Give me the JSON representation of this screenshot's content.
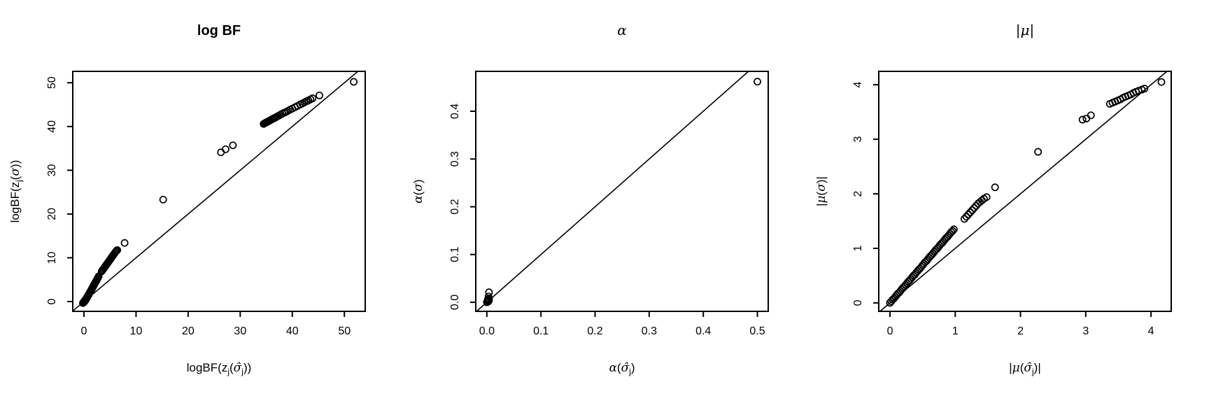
{
  "colors": {
    "foreground": "#000000",
    "background": "#ffffff"
  },
  "chart_data": [
    {
      "type": "scatter",
      "title": {
        "text": "log BF",
        "bold": true,
        "greek": false
      },
      "xlabel": {
        "parts": [
          {
            "t": "logBF(z"
          },
          {
            "t": "j",
            "sub": true
          },
          {
            "t": "("
          },
          {
            "t": "σ̂",
            "greek": true
          },
          {
            "t": "j",
            "sub": true
          },
          {
            "t": "))"
          }
        ]
      },
      "ylabel": {
        "parts": [
          {
            "t": "logBF(z"
          },
          {
            "t": "j",
            "sub": true
          },
          {
            "t": "("
          },
          {
            "t": "σ",
            "greek": true
          },
          {
            "t": "))"
          }
        ]
      },
      "xlim": [
        -2.15,
        54.0
      ],
      "ylim": [
        -2.24,
        52.6
      ],
      "xticks": [
        {
          "v": 0,
          "label": "0"
        },
        {
          "v": 10,
          "label": "10"
        },
        {
          "v": 20,
          "label": "20"
        },
        {
          "v": 30,
          "label": "30"
        },
        {
          "v": 40,
          "label": "40"
        },
        {
          "v": 50,
          "label": "50"
        }
      ],
      "yticks": [
        {
          "v": 0,
          "label": "0"
        },
        {
          "v": 10,
          "label": "10"
        },
        {
          "v": 20,
          "label": "20"
        },
        {
          "v": 30,
          "label": "30"
        },
        {
          "v": 40,
          "label": "40"
        },
        {
          "v": 50,
          "label": "50"
        }
      ],
      "reference_line": {
        "type": "identity",
        "intercept": 0,
        "slope": 1
      },
      "marker": "open-circle",
      "points": [
        [
          -0.2,
          -0.35
        ],
        [
          -0.1,
          -0.2
        ],
        [
          0,
          -0.1
        ],
        [
          0.08,
          -0.02
        ],
        [
          0.15,
          0.1
        ],
        [
          0.25,
          0.2
        ],
        [
          0,
          0
        ],
        [
          0.03,
          0.02
        ],
        [
          0.06,
          0.05
        ],
        [
          0.1,
          0.09
        ],
        [
          0.13,
          0.13
        ],
        [
          0.17,
          0.19
        ],
        [
          0.2,
          0.24
        ],
        [
          0.24,
          0.3
        ],
        [
          0.28,
          0.37
        ],
        [
          0.32,
          0.44
        ],
        [
          0.36,
          0.52
        ],
        [
          0.4,
          0.6
        ],
        [
          0.45,
          0.69
        ],
        [
          0.5,
          0.78
        ],
        [
          0.55,
          0.88
        ],
        [
          0.6,
          0.98
        ],
        [
          0.66,
          1.09
        ],
        [
          0.72,
          1.21
        ],
        [
          0.78,
          1.33
        ],
        [
          0.84,
          1.46
        ],
        [
          0.9,
          1.59
        ],
        [
          0.97,
          1.73
        ],
        [
          1.04,
          1.88
        ],
        [
          1.11,
          2.03
        ],
        [
          1.18,
          2.18
        ],
        [
          1.26,
          2.35
        ],
        [
          1.34,
          2.52
        ],
        [
          1.42,
          2.69
        ],
        [
          1.5,
          2.87
        ],
        [
          1.59,
          3.06
        ],
        [
          1.68,
          3.25
        ],
        [
          1.77,
          3.45
        ],
        [
          1.86,
          3.65
        ],
        [
          1.96,
          3.86
        ],
        [
          2.06,
          4.08
        ],
        [
          2.16,
          4.3
        ],
        [
          2.27,
          4.53
        ],
        [
          2.38,
          4.77
        ],
        [
          2.49,
          5.01
        ],
        [
          2.6,
          5.26
        ],
        [
          2.72,
          5.52
        ],
        [
          2.84,
          5.78
        ],
        [
          3.4,
          6.9
        ],
        [
          3.55,
          7.15
        ],
        [
          3.7,
          7.4
        ],
        [
          3.85,
          7.65
        ],
        [
          4.0,
          7.9
        ],
        [
          4.15,
          8.15
        ],
        [
          4.3,
          8.4
        ],
        [
          4.45,
          8.65
        ],
        [
          4.6,
          8.9
        ],
        [
          4.75,
          9.15
        ],
        [
          4.9,
          9.4
        ],
        [
          5.05,
          9.65
        ],
        [
          5.2,
          9.9
        ],
        [
          5.35,
          10.15
        ],
        [
          5.5,
          10.4
        ],
        [
          5.65,
          10.65
        ],
        [
          5.8,
          10.9
        ],
        [
          5.95,
          11.15
        ],
        [
          6.1,
          11.4
        ],
        [
          6.25,
          11.6
        ],
        [
          6.4,
          11.75
        ],
        [
          7.8,
          13.4
        ],
        [
          15.2,
          23.3
        ],
        [
          26.3,
          34.1
        ],
        [
          27.2,
          34.8
        ],
        [
          28.6,
          35.7
        ],
        [
          34.5,
          40.6
        ],
        [
          34.65,
          40.7
        ],
        [
          34.8,
          40.8
        ],
        [
          34.95,
          40.9
        ],
        [
          35.1,
          41.0
        ],
        [
          35.25,
          41.1
        ],
        [
          35.45,
          41.2
        ],
        [
          35.65,
          41.35
        ],
        [
          35.85,
          41.5
        ],
        [
          36.1,
          41.65
        ],
        [
          36.35,
          41.8
        ],
        [
          36.6,
          41.95
        ],
        [
          36.9,
          42.15
        ],
        [
          37.2,
          42.35
        ],
        [
          37.5,
          42.55
        ],
        [
          37.8,
          42.75
        ],
        [
          38.1,
          42.95
        ],
        [
          38.45,
          43.15
        ],
        [
          38.8,
          43.35
        ],
        [
          39.2,
          43.6
        ],
        [
          39.6,
          43.85
        ],
        [
          40.0,
          44.1
        ],
        [
          40.5,
          44.4
        ],
        [
          41.0,
          44.7
        ],
        [
          41.5,
          45.0
        ],
        [
          41.9,
          45.25
        ],
        [
          42.3,
          45.5
        ],
        [
          42.7,
          45.75
        ],
        [
          43.1,
          45.95
        ],
        [
          43.5,
          46.2
        ],
        [
          43.9,
          46.45
        ],
        [
          45.2,
          47.1
        ],
        [
          51.8,
          50.2
        ]
      ]
    },
    {
      "type": "scatter",
      "title": {
        "text": "α",
        "bold": false,
        "greek": true
      },
      "xlabel": {
        "parts": [
          {
            "t": "α",
            "greek": true
          },
          {
            "t": "("
          },
          {
            "t": "σ̂",
            "greek": true
          },
          {
            "t": "j",
            "sub": true
          },
          {
            "t": ")"
          }
        ]
      },
      "ylabel": {
        "parts": [
          {
            "t": "α",
            "greek": true
          },
          {
            "t": "("
          },
          {
            "t": "σ",
            "greek": true
          },
          {
            "t": ")"
          }
        ]
      },
      "xlim": [
        -0.0205,
        0.52
      ],
      "ylim": [
        -0.019,
        0.4835
      ],
      "xticks": [
        {
          "v": 0,
          "label": "0.0"
        },
        {
          "v": 0.1,
          "label": "0.1"
        },
        {
          "v": 0.2,
          "label": "0.2"
        },
        {
          "v": 0.3,
          "label": "0.3"
        },
        {
          "v": 0.4,
          "label": "0.4"
        },
        {
          "v": 0.5,
          "label": "0.5"
        }
      ],
      "yticks": [
        {
          "v": 0,
          "label": "0.0"
        },
        {
          "v": 0.1,
          "label": "0.1"
        },
        {
          "v": 0.2,
          "label": "0.2"
        },
        {
          "v": 0.3,
          "label": "0.3"
        },
        {
          "v": 0.4,
          "label": "0.4"
        }
      ],
      "reference_line": {
        "type": "identity",
        "intercept": 0,
        "slope": 1
      },
      "marker": "open-circle",
      "points": [
        [
          0,
          0
        ],
        [
          0.001,
          0.001
        ],
        [
          0.002,
          0.001
        ],
        [
          0.001,
          0.002
        ],
        [
          0.003,
          0.002
        ],
        [
          0.002,
          0.003
        ],
        [
          0.004,
          0.004
        ],
        [
          0.003,
          0.005
        ],
        [
          0.002,
          0.006
        ],
        [
          0.004,
          0.008
        ],
        [
          0.003,
          0.012
        ],
        [
          0.004,
          0.021
        ],
        [
          0.5,
          0.462
        ]
      ]
    },
    {
      "type": "scatter",
      "title": {
        "text": "|μ|",
        "bold": false,
        "greek": true
      },
      "xlabel": {
        "parts": [
          {
            "t": "|"
          },
          {
            "t": "μ",
            "greek": true
          },
          {
            "t": "("
          },
          {
            "t": "σ̂",
            "greek": true
          },
          {
            "t": "j",
            "sub": true
          },
          {
            "t": ")|"
          }
        ]
      },
      "ylabel": {
        "parts": [
          {
            "t": "|"
          },
          {
            "t": "μ",
            "greek": true
          },
          {
            "t": "("
          },
          {
            "t": "σ",
            "greek": true
          },
          {
            "t": ")|"
          }
        ]
      },
      "xlim": [
        -0.172,
        4.31
      ],
      "ylim": [
        -0.155,
        4.245
      ],
      "xticks": [
        {
          "v": 0,
          "label": "0"
        },
        {
          "v": 1,
          "label": "1"
        },
        {
          "v": 2,
          "label": "2"
        },
        {
          "v": 3,
          "label": "3"
        },
        {
          "v": 4,
          "label": "4"
        }
      ],
      "yticks": [
        {
          "v": 0,
          "label": "0"
        },
        {
          "v": 1,
          "label": "1"
        },
        {
          "v": 2,
          "label": "2"
        },
        {
          "v": 3,
          "label": "3"
        },
        {
          "v": 4,
          "label": "4"
        }
      ],
      "reference_line": {
        "type": "identity",
        "intercept": 0,
        "slope": 1
      },
      "marker": "open-circle",
      "points": [
        [
          0,
          0
        ],
        [
          0.02,
          0.03
        ],
        [
          0.04,
          0.06
        ],
        [
          0.06,
          0.08
        ],
        [
          0.08,
          0.11
        ],
        [
          0.1,
          0.14
        ],
        [
          0.12,
          0.17
        ],
        [
          0.14,
          0.19
        ],
        [
          0.16,
          0.22
        ],
        [
          0.18,
          0.25
        ],
        [
          0.2,
          0.28
        ],
        [
          0.22,
          0.3
        ],
        [
          0.24,
          0.33
        ],
        [
          0.26,
          0.36
        ],
        [
          0.28,
          0.39
        ],
        [
          0.3,
          0.41
        ],
        [
          0.32,
          0.44
        ],
        [
          0.34,
          0.47
        ],
        [
          0.36,
          0.5
        ],
        [
          0.38,
          0.52
        ],
        [
          0.4,
          0.55
        ],
        [
          0.42,
          0.58
        ],
        [
          0.44,
          0.61
        ],
        [
          0.46,
          0.63
        ],
        [
          0.48,
          0.66
        ],
        [
          0.5,
          0.69
        ],
        [
          0.52,
          0.72
        ],
        [
          0.54,
          0.75
        ],
        [
          0.56,
          0.77
        ],
        [
          0.58,
          0.8
        ],
        [
          0.6,
          0.83
        ],
        [
          0.62,
          0.86
        ],
        [
          0.64,
          0.88
        ],
        [
          0.66,
          0.91
        ],
        [
          0.68,
          0.94
        ],
        [
          0.7,
          0.97
        ],
        [
          0.72,
          0.99
        ],
        [
          0.74,
          1.02
        ],
        [
          0.76,
          1.05
        ],
        [
          0.78,
          1.08
        ],
        [
          0.8,
          1.1
        ],
        [
          0.82,
          1.13
        ],
        [
          0.84,
          1.16
        ],
        [
          0.86,
          1.19
        ],
        [
          0.88,
          1.21
        ],
        [
          0.9,
          1.24
        ],
        [
          0.92,
          1.27
        ],
        [
          0.94,
          1.3
        ],
        [
          0.96,
          1.32
        ],
        [
          0.98,
          1.35
        ],
        [
          1.14,
          1.54
        ],
        [
          1.17,
          1.58
        ],
        [
          1.2,
          1.62
        ],
        [
          1.23,
          1.66
        ],
        [
          1.26,
          1.7
        ],
        [
          1.29,
          1.74
        ],
        [
          1.32,
          1.78
        ],
        [
          1.35,
          1.82
        ],
        [
          1.38,
          1.85
        ],
        [
          1.41,
          1.88
        ],
        [
          1.44,
          1.91
        ],
        [
          1.48,
          1.94
        ],
        [
          1.61,
          2.12
        ],
        [
          2.27,
          2.77
        ],
        [
          2.95,
          3.36
        ],
        [
          3.01,
          3.38
        ],
        [
          3.08,
          3.44
        ],
        [
          3.37,
          3.65
        ],
        [
          3.41,
          3.67
        ],
        [
          3.45,
          3.69
        ],
        [
          3.49,
          3.71
        ],
        [
          3.53,
          3.73
        ],
        [
          3.57,
          3.76
        ],
        [
          3.61,
          3.78
        ],
        [
          3.65,
          3.8
        ],
        [
          3.69,
          3.82
        ],
        [
          3.73,
          3.85
        ],
        [
          3.77,
          3.87
        ],
        [
          3.81,
          3.89
        ],
        [
          3.86,
          3.91
        ],
        [
          3.9,
          3.93
        ],
        [
          4.16,
          4.05
        ]
      ]
    }
  ]
}
